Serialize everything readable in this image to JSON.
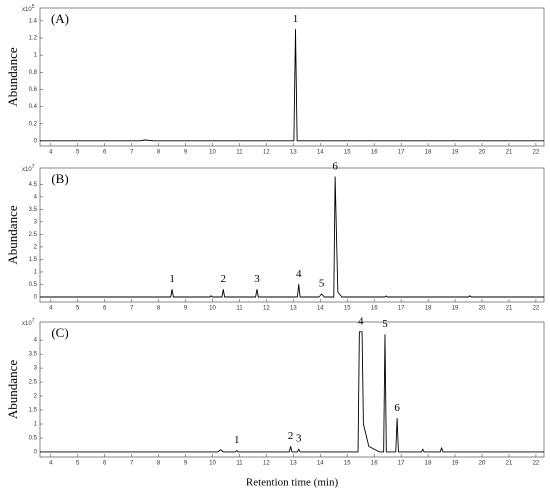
{
  "chart_data": [
    {
      "type": "line",
      "panel_label": "(A)",
      "ylabel": "Abundance",
      "scale_label": "x10",
      "scale_exponent": "5",
      "xlim": [
        3.6,
        22.3
      ],
      "xticks": [
        4,
        5,
        6,
        7,
        8,
        9,
        10,
        11,
        12,
        13,
        14,
        15,
        16,
        17,
        18,
        19,
        20,
        21,
        22
      ],
      "ylim": [
        -0.06,
        1.55
      ],
      "yticks": [
        0,
        0.2,
        0.4,
        0.6,
        0.8,
        1,
        1.2,
        1.4
      ],
      "series": [
        {
          "color": "#000000",
          "x": [
            3.6,
            7.3,
            7.5,
            7.8,
            13.02,
            13.08,
            13.14,
            22.3
          ],
          "values": [
            0,
            0,
            0.01,
            0,
            0,
            1.3,
            0,
            0
          ]
        }
      ],
      "annotations": [
        {
          "text": "1",
          "x": 13.08,
          "y": 1.3
        }
      ]
    },
    {
      "type": "line",
      "panel_label": "(B)",
      "ylabel": "Abundance",
      "scale_label": "x10",
      "scale_exponent": "7",
      "xlim": [
        3.6,
        22.3
      ],
      "xticks": [
        4,
        5,
        6,
        7,
        8,
        9,
        10,
        11,
        12,
        13,
        14,
        15,
        16,
        17,
        18,
        19,
        20,
        21,
        22
      ],
      "ylim": [
        -0.2,
        5.15
      ],
      "yticks": [
        0,
        0.5,
        1,
        1.5,
        2,
        2.5,
        3,
        3.5,
        4,
        4.5
      ],
      "series": [
        {
          "color": "#000000",
          "x": [
            3.6,
            8.45,
            8.5,
            8.55,
            9.9,
            9.95,
            10.0,
            10.35,
            10.4,
            10.45,
            11.6,
            11.65,
            11.7,
            13.15,
            13.2,
            13.25,
            13.95,
            14.05,
            14.15,
            14.5,
            14.55,
            14.65,
            14.8,
            16.4,
            16.45,
            16.5,
            19.5,
            19.55,
            19.6,
            22.3
          ],
          "values": [
            0,
            0,
            0.3,
            0,
            0,
            0.05,
            0,
            0,
            0.3,
            0,
            0,
            0.3,
            0,
            0,
            0.5,
            0,
            0,
            0.12,
            0,
            0,
            4.8,
            0.2,
            0,
            0,
            0.04,
            0,
            0,
            0.05,
            0,
            0
          ]
        }
      ],
      "annotations": [
        {
          "text": "1",
          "x": 8.5,
          "y": 0.3
        },
        {
          "text": "2",
          "x": 10.4,
          "y": 0.3
        },
        {
          "text": "3",
          "x": 11.65,
          "y": 0.3
        },
        {
          "text": "4",
          "x": 13.2,
          "y": 0.5
        },
        {
          "text": "5",
          "x": 14.05,
          "y": 0.12
        },
        {
          "text": "6",
          "x": 14.55,
          "y": 4.8
        }
      ]
    },
    {
      "type": "line",
      "panel_label": "(C)",
      "ylabel": "Abundance",
      "xlabel": "Retention time (min)",
      "scale_label": "x10",
      "scale_exponent": "7",
      "xlim": [
        3.6,
        22.3
      ],
      "xticks": [
        4,
        5,
        6,
        7,
        8,
        9,
        10,
        11,
        12,
        13,
        14,
        15,
        16,
        17,
        18,
        19,
        20,
        21,
        22
      ],
      "ylim": [
        -0.18,
        4.65
      ],
      "yticks": [
        0,
        0.5,
        1,
        1.5,
        2,
        2.5,
        3,
        3.5,
        4
      ],
      "series": [
        {
          "color": "#000000",
          "x": [
            3.6,
            10.2,
            10.3,
            10.4,
            10.85,
            10.9,
            10.95,
            12.85,
            12.9,
            12.95,
            13.15,
            13.2,
            13.25,
            15.4,
            15.45,
            15.55,
            15.6,
            15.8,
            16.2,
            16.35,
            16.4,
            16.45,
            16.8,
            16.85,
            16.9,
            17.75,
            17.8,
            17.85,
            18.45,
            18.5,
            18.55,
            22.3
          ],
          "values": [
            0,
            0,
            0.08,
            0,
            0,
            0.05,
            0,
            0,
            0.2,
            0,
            0,
            0.1,
            0,
            0,
            4.3,
            4.3,
            1.0,
            0.2,
            0,
            0,
            4.2,
            0,
            0,
            1.2,
            0,
            0,
            0.1,
            0,
            0,
            0.15,
            0,
            0
          ]
        }
      ],
      "annotations": [
        {
          "text": "1",
          "x": 10.9,
          "y": 0.05
        },
        {
          "text": "2",
          "x": 12.9,
          "y": 0.2
        },
        {
          "text": "3",
          "x": 13.2,
          "y": 0.1
        },
        {
          "text": "4",
          "x": 15.5,
          "y": 4.3
        },
        {
          "text": "5",
          "x": 16.4,
          "y": 4.2
        },
        {
          "text": "6",
          "x": 16.85,
          "y": 1.2
        }
      ]
    }
  ]
}
